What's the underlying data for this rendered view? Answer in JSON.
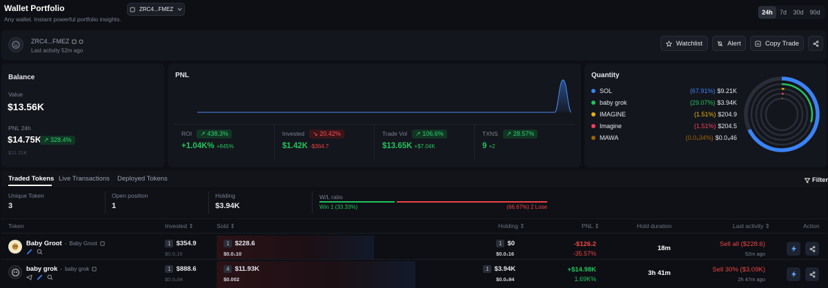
{
  "header": {
    "title": "Wallet Portfolio",
    "subtitle": "Any wallet. Instant powerful portfolio insights.",
    "wallet_selector": "ZRC4...FMEZ",
    "timeframes": [
      "24h",
      "7d",
      "30d",
      "90d"
    ],
    "active_timeframe": "24h"
  },
  "wallet": {
    "address": "ZRC4...FMEZ",
    "last_activity": "Last activity 52m ago",
    "watchlist": "Watchlist",
    "alert": "Alert",
    "copy_trade": "Copy Trade"
  },
  "balance": {
    "title": "Balance",
    "value_label": "Value",
    "value": "$13.56K",
    "pnl_label": "PNL 24h",
    "pnl_value": "$14.75K",
    "pnl_badge": "328.4%",
    "pnl_sub": "$11.31K"
  },
  "pnl": {
    "title": "PNL",
    "stats": [
      {
        "label": "ROI",
        "badge": "438.3%",
        "badge_type": "g",
        "value": "+1.04K%",
        "sub": "+845%",
        "value_color": "green",
        "sub_color": "green"
      },
      {
        "label": "Invested",
        "badge": "20.42%",
        "badge_type": "r",
        "value": "$1.42K",
        "sub": "-$364.7",
        "value_color": "green",
        "sub_color": "red"
      },
      {
        "label": "Trade Vol",
        "badge": "106.6%",
        "badge_type": "g",
        "value": "$13.65K",
        "sub": "+$7.04K",
        "value_color": "green",
        "sub_color": "green"
      },
      {
        "label": "TXNS",
        "badge": "28.57%",
        "badge_type": "g",
        "value": "9",
        "sub": "+2",
        "value_color": "green",
        "sub_color": "green"
      }
    ]
  },
  "quantity": {
    "title": "Quantity",
    "items": [
      {
        "name": "SOL",
        "pct": "(67.91%)",
        "value": "$9.21K",
        "color": "#3b82f6",
        "share": 0.6791
      },
      {
        "name": "baby grok",
        "pct": "(29.07%)",
        "value": "$3.94K",
        "color": "#22c55e",
        "share": 0.2907
      },
      {
        "name": "IMAGINE",
        "pct": "(1.51%)",
        "value": "$204.9",
        "color": "#eab308",
        "share": 0.0151
      },
      {
        "name": "Imagine",
        "pct": "(1.51%)",
        "value": "$204.5",
        "color": "#f43f5e",
        "share": 0.0151
      },
      {
        "name": "MAWA",
        "pct": "(0.0₄34%)",
        "value": "$0.0₄46",
        "color": "#a16207",
        "share": 3e-05
      }
    ]
  },
  "tabs": [
    "Traded Tokens",
    "Live Transactions",
    "Deployed Tokens"
  ],
  "active_tab": "Traded Tokens",
  "filter": "Filter",
  "summary": {
    "unique_label": "Unique Token",
    "unique_value": "3",
    "open_label": "Open position",
    "open_value": "1",
    "holding_label": "Holding",
    "holding_value": "$3.94K",
    "wl_label": "W/L ratio",
    "win_text": "Win 1 (33.33%)",
    "lose_text": "(66.67%) 2 Lose",
    "win_ratio": 0.3333
  },
  "table": {
    "columns": [
      "Token",
      "Invested",
      "Sold",
      "Holding",
      "PNL",
      "Hold duration",
      "Last activity",
      "Action"
    ],
    "rows": [
      {
        "name": "Baby Groot",
        "alias": "Baby Groot",
        "invested_count": "1",
        "invested": "$354.9",
        "invested_sub": "$0.0₁16",
        "sold_count": "1",
        "sold": "$228.6",
        "sold_sub": "$0.0₁10",
        "holding_count": "1",
        "holding": "$0",
        "holding_sub": "$0.0₁16",
        "pnl": "-$126.2",
        "pnl_pct": "-35.57%",
        "pnl_color": "red",
        "duration": "18m",
        "last_action": "Sell all ($228.6)",
        "last_time": "52m ago"
      },
      {
        "name": "baby grok",
        "alias": "baby grok",
        "invested_count": "1",
        "invested": "$888.6",
        "invested_sub": "$0.0₈94",
        "sold_count": "4",
        "sold": "$11.93K",
        "sold_sub": "$0.002",
        "holding_count": "1",
        "holding": "$3.94K",
        "holding_sub": "$0.0₈94",
        "pnl": "+$14.98K",
        "pnl_pct": "1.69K%",
        "pnl_color": "green",
        "duration": "3h 41m",
        "last_action": "Sell 30% ($3.09K)",
        "last_time": "2h 47m ago"
      }
    ]
  }
}
